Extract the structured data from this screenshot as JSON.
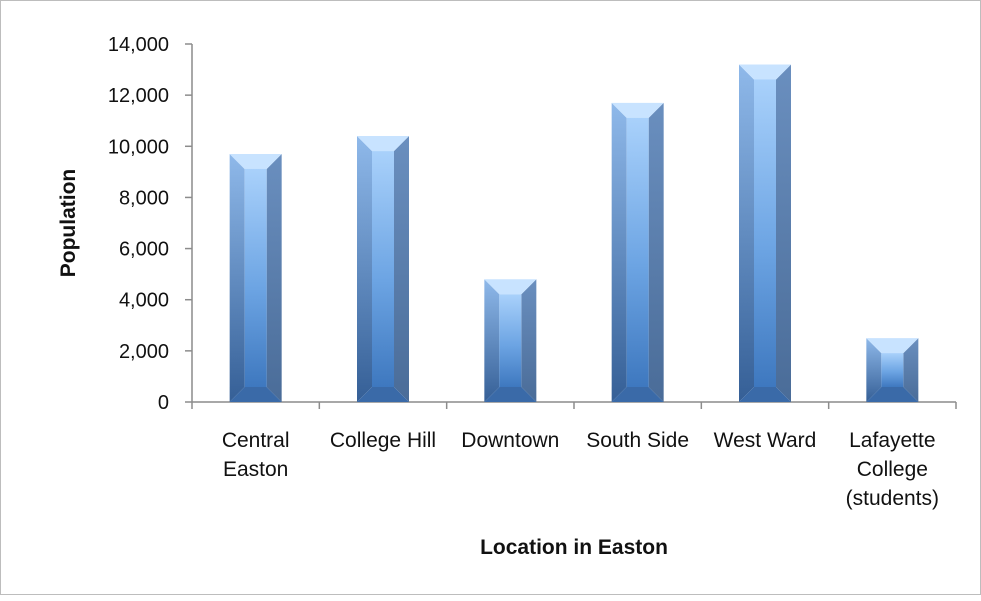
{
  "chart_data": {
    "type": "bar",
    "style": "3d-beveled-column",
    "categories": [
      [
        "Central",
        "Easton"
      ],
      [
        "College Hill"
      ],
      [
        "Downtown"
      ],
      [
        "South Side"
      ],
      [
        "West Ward"
      ],
      [
        "Lafayette",
        "College",
        "(students)"
      ]
    ],
    "values": [
      9700,
      10400,
      4800,
      11700,
      13200,
      2500
    ],
    "title": "",
    "xlabel": "Location in Easton",
    "ylabel": "Population",
    "ylim": [
      0,
      14000
    ],
    "yticks": [
      "0",
      "2,000",
      "4,000",
      "6,000",
      "8,000",
      "10,000",
      "12,000",
      "14,000"
    ],
    "grid": false,
    "legend": "none",
    "colors": {
      "face_light": "#a9d1fb",
      "face_mid": "#6ca4e3",
      "face_dark": "#3e78bf",
      "side_shade": "#4a6c98",
      "top_cap": "#c8e3ff",
      "axis": "#8c8c8c"
    }
  }
}
